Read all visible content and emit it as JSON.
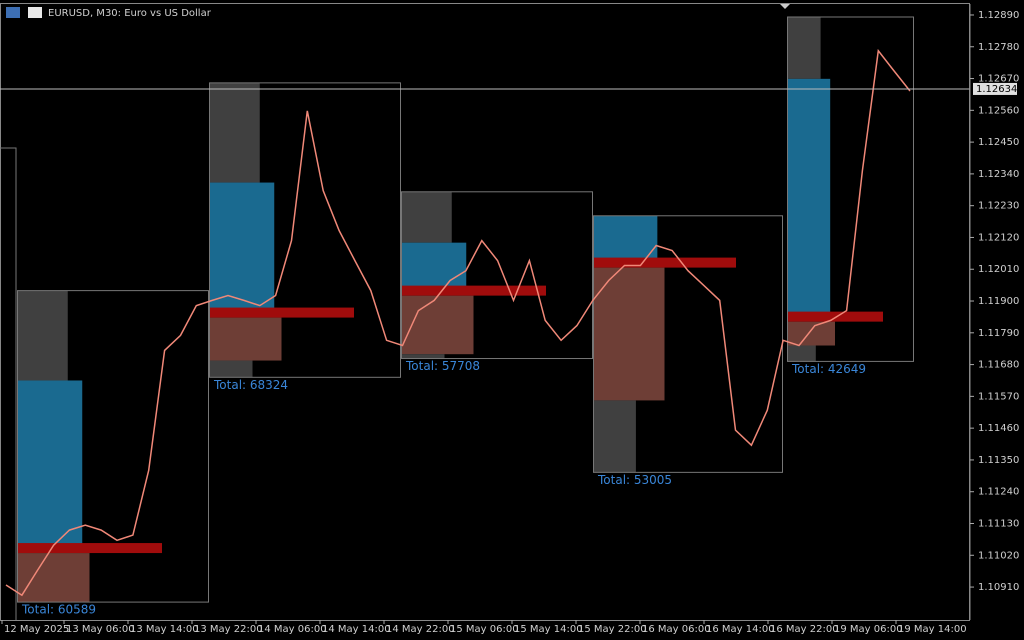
{
  "header": {
    "title": "EURUSD, M30:  Euro vs US Dollar"
  },
  "chart_data": {
    "type": "price-line",
    "ylim": [
      1.10796,
      1.12928
    ],
    "yticks": [
      {
        "value": 1.1289,
        "label": "1.12890"
      },
      {
        "value": 1.1278,
        "label": "1.12780"
      },
      {
        "value": 1.1267,
        "label": "1.12670"
      },
      {
        "value": 1.1256,
        "label": "1.12560"
      },
      {
        "value": 1.1245,
        "label": "1.12450"
      },
      {
        "value": 1.1234,
        "label": "1.12340"
      },
      {
        "value": 1.1223,
        "label": "1.12230"
      },
      {
        "value": 1.1212,
        "label": "1.12120"
      },
      {
        "value": 1.1201,
        "label": "1.12010"
      },
      {
        "value": 1.119,
        "label": "1.11900"
      },
      {
        "value": 1.1179,
        "label": "1.11790"
      },
      {
        "value": 1.1168,
        "label": "1.11680"
      },
      {
        "value": 1.1157,
        "label": "1.11570"
      },
      {
        "value": 1.1146,
        "label": "1.11460"
      },
      {
        "value": 1.1135,
        "label": "1.11350"
      },
      {
        "value": 1.1124,
        "label": "1.11240"
      },
      {
        "value": 1.1113,
        "label": "1.11130"
      },
      {
        "value": 1.1102,
        "label": "1.11020"
      },
      {
        "value": 1.1091,
        "label": "1.10910"
      }
    ],
    "categories": [
      "12 May 2025",
      "13 May 06:00",
      "13 May 14:00",
      "13 May 22:00",
      "14 May 06:00",
      "14 May 14:00",
      "14 May 22:00",
      "15 May 06:00",
      "15 May 14:00",
      "15 May 22:00",
      "16 May 06:00",
      "16 May 14:00",
      "16 May 22:00",
      "19 May 06:00",
      "19 May 14:00"
    ],
    "current_price": 1.12634,
    "color": "#f08878",
    "close": [
      1.10917,
      1.10882,
      1.10969,
      1.11055,
      1.11107,
      1.11124,
      1.11107,
      1.11072,
      1.1109,
      1.11314,
      1.11729,
      1.11781,
      1.11884,
      1.11902,
      1.11919,
      1.11902,
      1.11884,
      1.11919,
      1.12109,
      1.12558,
      1.12282,
      1.12144,
      1.1204,
      1.11936,
      1.11764,
      1.11746,
      1.11867,
      1.11902,
      1.11971,
      1.12005,
      1.12109,
      1.1204,
      1.11902,
      1.1204,
      1.11833,
      1.11764,
      1.11815,
      1.11902,
      1.11971,
      1.12023,
      1.12023,
      1.12092,
      1.12075,
      1.12005,
      1.11954,
      1.11902,
      1.11453,
      1.11401,
      1.11522,
      1.11764,
      1.11746,
      1.11815,
      1.11833,
      1.11867,
      1.12351,
      1.12766,
      1.12696,
      1.12627
    ],
    "profiles": [
      {
        "high": 1.11936,
        "low": 1.10858,
        "vah": 1.11625,
        "poc": 1.11045,
        "val": 1.10858,
        "total": "Total: 60589"
      },
      {
        "high": 1.12655,
        "low": 1.11636,
        "vah": 1.1231,
        "poc": 1.1186,
        "val": 1.11694,
        "total": "Total: 68324"
      },
      {
        "high": 1.12278,
        "low": 1.11701,
        "vah": 1.12102,
        "poc": 1.11936,
        "val": 1.11716,
        "total": "Total: 57708"
      },
      {
        "high": 1.12195,
        "low": 1.11307,
        "vah": 1.12195,
        "poc": 1.12033,
        "val": 1.11556,
        "total": "Total: 53005"
      },
      {
        "high": 1.12883,
        "low": 1.11691,
        "vah": 1.12669,
        "poc": 1.11846,
        "val": 1.11746,
        "total": "Total: 42649"
      }
    ]
  }
}
